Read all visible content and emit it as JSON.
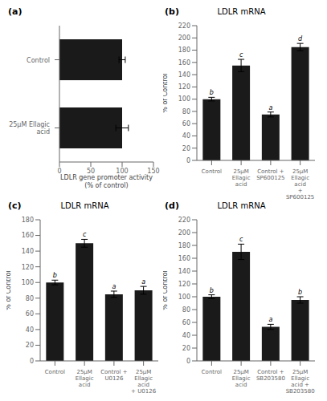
{
  "chart_data": [
    {
      "type": "bar",
      "panel_label": "(a)",
      "orientation": "horizontal",
      "categories": [
        "25μM Ellagic\nacid",
        "Control"
      ],
      "values": [
        100,
        100
      ],
      "errors": [
        10,
        5
      ],
      "xlabel": "LDLR gene promoter activity\n(% of control)",
      "xlim": [
        0,
        150
      ],
      "xticks": [
        0,
        50,
        100,
        150
      ],
      "color": "#1a1a1a",
      "grid": false
    },
    {
      "type": "bar",
      "panel_label": "(b)",
      "title": "LDLR mRNA",
      "categories": [
        "Control",
        "25μM\nEllagic\nacid",
        "Control +\nSP600125",
        "25μM\nEllagic\nacid\n+\nSP600125"
      ],
      "values": [
        100,
        155,
        75,
        185
      ],
      "errors": [
        3,
        10,
        4,
        6
      ],
      "letters": [
        "b",
        "c",
        "a",
        "d"
      ],
      "ylabel": "% of Control",
      "ylim": [
        0,
        220
      ],
      "yticks": [
        0,
        20,
        40,
        60,
        80,
        100,
        120,
        140,
        160,
        180,
        200,
        220
      ],
      "color": "#1a1a1a",
      "grid": false
    },
    {
      "type": "bar",
      "panel_label": "(c)",
      "title": "LDLR mRNA",
      "categories": [
        "Control",
        "25μM\nEllagic\nacid",
        "Control +\nU0126",
        "25μM\nEllagic\nacid\n+ U0126"
      ],
      "values": [
        100,
        150,
        85,
        90
      ],
      "errors": [
        3,
        5,
        4,
        5
      ],
      "letters": [
        "b",
        "c",
        "a",
        "a"
      ],
      "ylabel": "% of Control",
      "ylim": [
        0,
        180
      ],
      "yticks": [
        0,
        20,
        40,
        60,
        80,
        100,
        120,
        140,
        160,
        180
      ],
      "color": "#1a1a1a",
      "grid": false
    },
    {
      "type": "bar",
      "panel_label": "(d)",
      "title": "LDLR mRNA",
      "categories": [
        "Control",
        "25μM\nEllagic\nacid",
        "Control +\nSB203580",
        "25μM\nEllagic\nacid +\nSB203580"
      ],
      "values": [
        100,
        170,
        53,
        95
      ],
      "errors": [
        3,
        12,
        4,
        5
      ],
      "letters": [
        "b",
        "c",
        "a",
        "b"
      ],
      "ylabel": "% of Control",
      "ylim": [
        0,
        220
      ],
      "yticks": [
        0,
        20,
        40,
        60,
        80,
        100,
        120,
        140,
        160,
        180,
        200,
        220
      ],
      "color": "#1a1a1a",
      "grid": false
    }
  ]
}
